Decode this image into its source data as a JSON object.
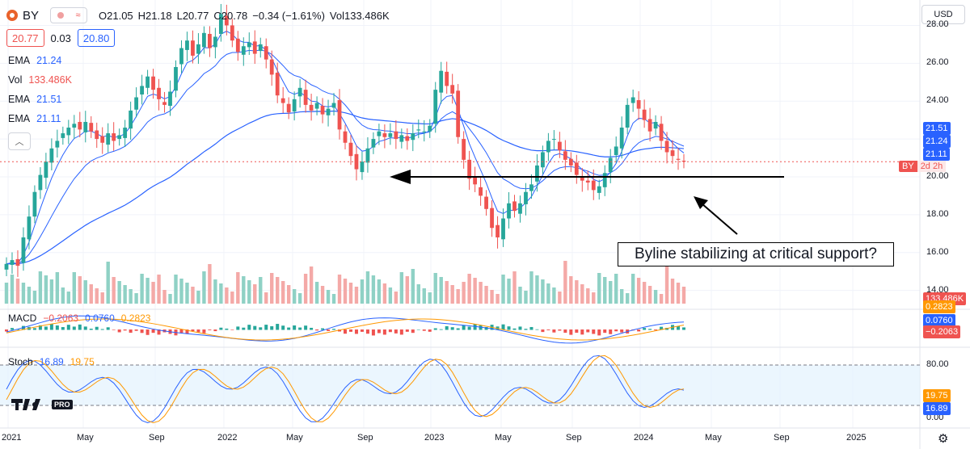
{
  "symbol_bar": {
    "symbol": "BY",
    "open": "O21.05",
    "high": "H21.18",
    "low": "L20.77",
    "close": "C20.78",
    "change": "−0.34 (−1.61%)",
    "volume": "Vol133.486K"
  },
  "price_boxes": {
    "bid": "20.77",
    "spread": "0.03",
    "ask": "20.80"
  },
  "legend": {
    "ema1": {
      "label": "EMA",
      "value": "21.24"
    },
    "vol": {
      "label": "Vol",
      "value": "133.486K"
    },
    "ema2": {
      "label": "EMA",
      "value": "21.51"
    },
    "ema3": {
      "label": "EMA",
      "value": "21.11"
    }
  },
  "currency_button": "USD",
  "price_axis": {
    "ticks": [
      "28.00",
      "26.00",
      "24.00",
      "22.00",
      "20.00",
      "18.00",
      "16.00",
      "14.00"
    ],
    "tick_values": [
      28,
      26,
      24,
      22,
      20,
      18,
      16,
      14
    ],
    "tags": {
      "ema2": "21.51",
      "ema1": "21.24",
      "ema3": "21.11",
      "volume": "133.486K"
    },
    "last_symbol": "BY",
    "countdown": "2d 2h"
  },
  "macd": {
    "label": "MACD",
    "v1": "−0.2063",
    "v2": "0.0760",
    "v3": "0.2823"
  },
  "macd_axis": {
    "top": "0.2823",
    "mid": "0.0760",
    "low": "−0.2063"
  },
  "stoch": {
    "label": "Stoch",
    "k": "16.89",
    "d": "19.75"
  },
  "stoch_axis": {
    "ticks": [
      "80.00",
      "0.00"
    ],
    "k_tag": "16.89",
    "d_tag": "19.75"
  },
  "time_axis": [
    "2021",
    "May",
    "Sep",
    "2022",
    "May",
    "Sep",
    "2023",
    "May",
    "Sep",
    "2024",
    "May",
    "Sep",
    "2025"
  ],
  "annotation": "Byline stabilizing at critical support?",
  "logo": {
    "pro": "PRO"
  },
  "icons": {
    "gear": "gear-icon",
    "collapse": "chevron-up-icon"
  },
  "colors": {
    "up": "#26a69a",
    "down": "#ef5350",
    "ema_blue": "#2962ff",
    "orange": "#ff9800",
    "band": "#e3f2fd"
  },
  "support_level": 20.0,
  "chart_data": {
    "type": "candlestick",
    "title": "",
    "y_range": [
      13.3,
      29.0
    ],
    "closes": [
      15.4,
      15.6,
      15.3,
      16.8,
      17.9,
      19.2,
      20.1,
      20.8,
      21.5,
      21.9,
      22.3,
      22.6,
      22.8,
      22.5,
      22.9,
      22.4,
      22.0,
      21.8,
      22.3,
      21.9,
      22.2,
      22.6,
      23.5,
      24.2,
      24.8,
      25.3,
      24.6,
      24.1,
      23.8,
      24.5,
      25.8,
      26.8,
      27.2,
      26.4,
      27.0,
      27.6,
      26.8,
      27.4,
      28.6,
      28.0,
      27.2,
      26.6,
      26.9,
      27.1,
      26.5,
      27.0,
      26.2,
      25.4,
      24.3,
      23.9,
      23.4,
      24.1,
      24.7,
      23.8,
      23.5,
      23.9,
      23.3,
      23.6,
      23.9,
      22.5,
      21.8,
      21.1,
      20.4,
      20.8,
      21.5,
      22.0,
      22.4,
      22.1,
      22.3,
      22.0,
      22.2,
      21.9,
      22.3,
      22.5,
      22.4,
      22.7,
      24.6,
      25.6,
      24.8,
      24.4,
      22.1,
      20.9,
      19.9,
      19.6,
      19.0,
      18.3,
      17.3,
      16.8,
      17.8,
      18.6,
      18.2,
      18.6,
      19.2,
      19.6,
      20.6,
      21.3,
      21.9,
      22.0,
      21.4,
      20.9,
      20.6,
      20.1,
      19.8,
      19.7,
      19.3,
      19.5,
      20.2,
      21.0,
      21.6,
      22.6,
      23.8,
      24.2,
      23.6,
      23.0,
      22.4,
      22.9,
      21.9,
      21.3,
      21.1,
      20.9,
      20.8
    ],
    "ema_fast_last": 21.24,
    "ema_slow_last": 21.51,
    "ema_200_last": 21.11,
    "volume_last": "133.486K",
    "macd_last": {
      "macd": 0.076,
      "signal": 0.2823,
      "histogram": -0.2063
    },
    "stoch_last": {
      "k": 16.89,
      "d": 19.75
    },
    "stoch_levels": [
      80,
      20
    ],
    "grid": true
  }
}
